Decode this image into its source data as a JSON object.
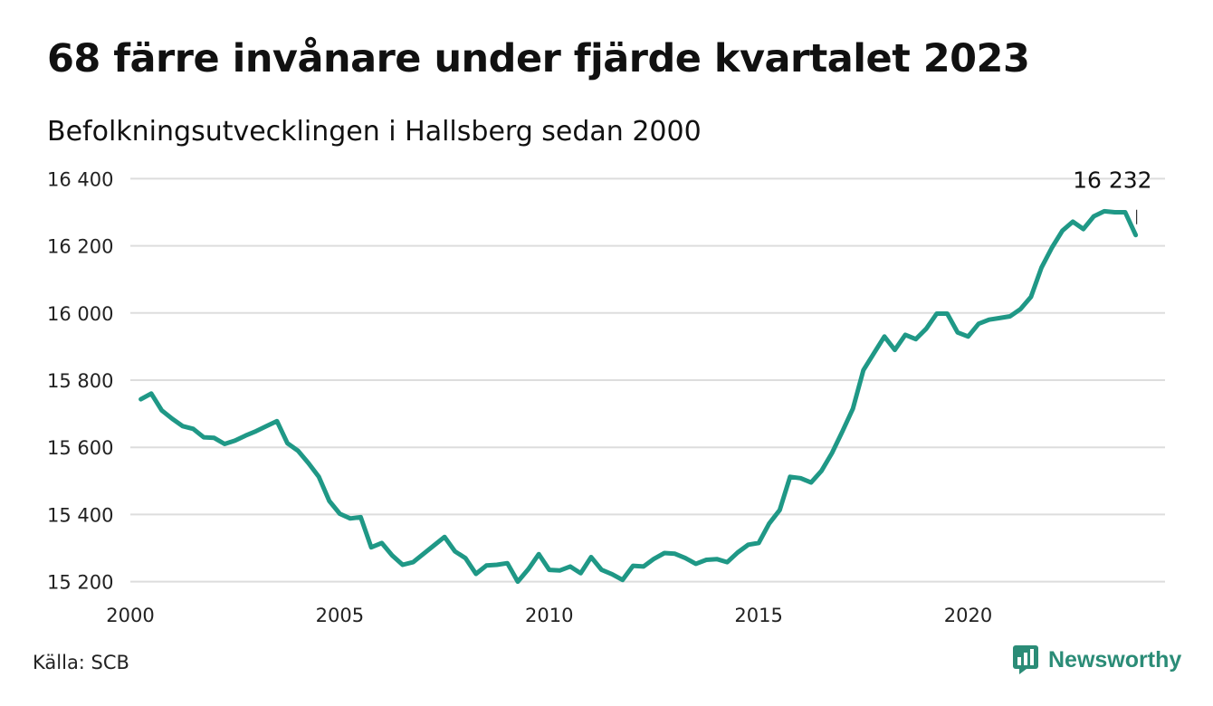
{
  "header": {
    "title": "68 färre invånare under fjärde kvartalet 2023",
    "subtitle": "Befolkningsutvecklingen i Hallsberg sedan 2000"
  },
  "footer": {
    "source": "Källa: SCB",
    "brand": "Newsworthy",
    "brand_icon": "newsworthy-logo-icon"
  },
  "colors": {
    "line": "#1f9886",
    "grid": "#dddddd",
    "brand": "#2b8c77"
  },
  "chart_data": {
    "type": "line",
    "title": "68 färre invånare under fjärde kvartalet 2023",
    "subtitle": "Befolkningsutvecklingen i Hallsberg sedan 2000",
    "xlabel": "",
    "ylabel": "",
    "xlim": [
      2000,
      2024.7
    ],
    "ylim": [
      15180,
      16420
    ],
    "y_ticks": [
      15200,
      15400,
      15600,
      15800,
      16000,
      16200,
      16400
    ],
    "y_tick_labels": [
      "15 200",
      "15 400",
      "15 600",
      "15 800",
      "16 000",
      "16 200",
      "16 400"
    ],
    "x_ticks": [
      2000,
      2005,
      2010,
      2015,
      2020
    ],
    "x_tick_labels": [
      "2000",
      "2005",
      "2010",
      "2015",
      "2020"
    ],
    "grid": "horizontal",
    "end_label": "16 232",
    "series": [
      {
        "name": "",
        "x": [
          2000.25,
          2000.5,
          2000.75,
          2001.0,
          2001.25,
          2001.5,
          2001.75,
          2002.0,
          2002.25,
          2002.5,
          2002.75,
          2003.0,
          2003.25,
          2003.5,
          2003.75,
          2004.0,
          2004.25,
          2004.5,
          2004.75,
          2005.0,
          2005.25,
          2005.5,
          2005.75,
          2006.0,
          2006.25,
          2006.5,
          2006.75,
          2007.0,
          2007.25,
          2007.5,
          2007.75,
          2008.0,
          2008.25,
          2008.5,
          2008.75,
          2009.0,
          2009.25,
          2009.5,
          2009.75,
          2010.0,
          2010.25,
          2010.5,
          2010.75,
          2011.0,
          2011.25,
          2011.5,
          2011.75,
          2012.0,
          2012.25,
          2012.5,
          2012.75,
          2013.0,
          2013.25,
          2013.5,
          2013.75,
          2014.0,
          2014.25,
          2014.5,
          2014.75,
          2015.0,
          2015.25,
          2015.5,
          2015.75,
          2016.0,
          2016.25,
          2016.5,
          2016.75,
          2017.0,
          2017.25,
          2017.5,
          2017.75,
          2018.0,
          2018.25,
          2018.5,
          2018.75,
          2019.0,
          2019.25,
          2019.5,
          2019.75,
          2020.0,
          2020.25,
          2020.5,
          2020.75,
          2021.0,
          2021.25,
          2021.5,
          2021.75,
          2022.0,
          2022.25,
          2022.5,
          2022.75,
          2023.0,
          2023.25,
          2023.5,
          2023.75,
          2024.0
        ],
        "values": [
          15743,
          15760,
          15710,
          15685,
          15663,
          15655,
          15630,
          15628,
          15610,
          15620,
          15635,
          15648,
          15663,
          15678,
          15612,
          15590,
          15553,
          15512,
          15440,
          15402,
          15388,
          15392,
          15302,
          15315,
          15278,
          15250,
          15258,
          15283,
          15308,
          15333,
          15290,
          15270,
          15223,
          15248,
          15250,
          15255,
          15200,
          15237,
          15282,
          15235,
          15233,
          15245,
          15225,
          15273,
          15235,
          15222,
          15205,
          15247,
          15245,
          15268,
          15285,
          15283,
          15270,
          15253,
          15265,
          15267,
          15258,
          15287,
          15310,
          15315,
          15373,
          15413,
          15512,
          15508,
          15495,
          15530,
          15583,
          15648,
          15715,
          15830,
          15880,
          15930,
          15890,
          15935,
          15922,
          15953,
          15998,
          15998,
          15942,
          15930,
          15968,
          15980,
          15985,
          15990,
          16012,
          16048,
          16135,
          16195,
          16245,
          16272,
          16250,
          16288,
          16303,
          16300,
          16300,
          16232
        ]
      }
    ]
  }
}
